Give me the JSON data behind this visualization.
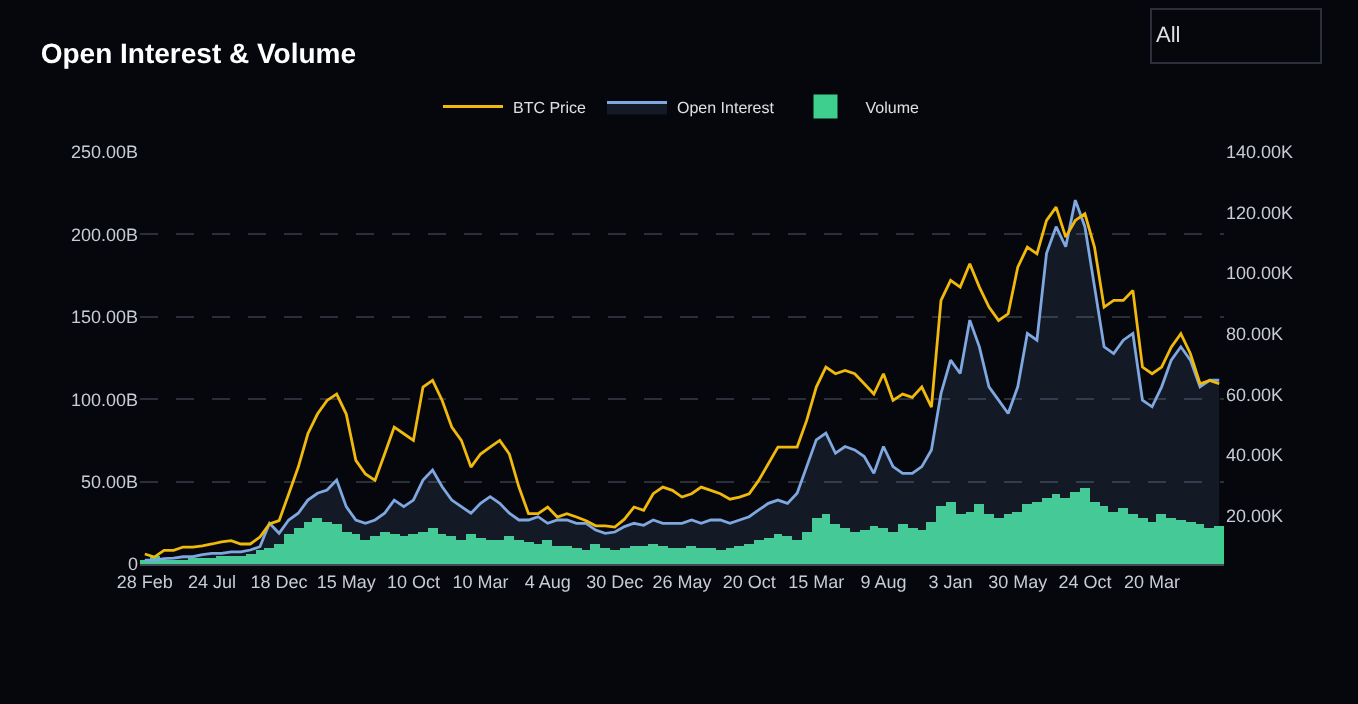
{
  "chart_data": {
    "type": "line",
    "title": "Open Interest & Volume",
    "annotations": [
      "All"
    ],
    "categories": [
      "28 Feb",
      null,
      null,
      null,
      null,
      null,
      null,
      "24 Jul",
      null,
      null,
      null,
      null,
      null,
      null,
      "18 Dec",
      null,
      null,
      null,
      null,
      null,
      null,
      "15 May",
      null,
      null,
      null,
      null,
      null,
      null,
      "10 Oct",
      null,
      null,
      null,
      null,
      null,
      null,
      "10 Mar",
      null,
      null,
      null,
      null,
      null,
      null,
      "4 Aug",
      null,
      null,
      null,
      null,
      null,
      null,
      "30 Dec",
      null,
      null,
      null,
      null,
      null,
      null,
      "26 May",
      null,
      null,
      null,
      null,
      null,
      null,
      "20 Oct",
      null,
      null,
      null,
      null,
      null,
      null,
      "15 Mar",
      null,
      null,
      null,
      null,
      null,
      null,
      "9 Aug",
      null,
      null,
      null,
      null,
      null,
      null,
      "3 Jan",
      null,
      null,
      null,
      null,
      null,
      null,
      "30 May",
      null,
      null,
      null,
      null,
      null,
      null,
      "24 Oct",
      null,
      null,
      null,
      null,
      null,
      null,
      "20 Mar",
      null,
      null,
      null,
      null,
      null,
      null,
      null
    ],
    "series": [
      {
        "name": "BTC Price",
        "axis": "y2",
        "color": "#f0b90b",
        "values": [
          7.3,
          6.3,
          8.5,
          8.5,
          9.6,
          9.6,
          10.0,
          10.6,
          11.3,
          11.7,
          10.6,
          10.6,
          12.9,
          17.2,
          18.3,
          27.1,
          36,
          47,
          53.5,
          58,
          60.1,
          53.5,
          38.2,
          33.7,
          31.6,
          40.3,
          49.2,
          47,
          44.8,
          62.4,
          64.6,
          58,
          49.2,
          44.8,
          36,
          40.3,
          42.6,
          44.8,
          40.3,
          29.4,
          20.6,
          20.6,
          22.8,
          19.5,
          20.6,
          19.5,
          18.3,
          16.6,
          16.6,
          16.2,
          18.8,
          22.8,
          21.7,
          27.2,
          29.4,
          28.3,
          26.1,
          27.2,
          29.4,
          28.3,
          27.2,
          25.4,
          26.1,
          27.2,
          31.6,
          37.1,
          42.6,
          42.6,
          42.6,
          51.4,
          62.4,
          69.0,
          66.8,
          67.9,
          66.8,
          63.5,
          60.1,
          66.8,
          58.0,
          60.1,
          59.0,
          62.4,
          55.8,
          91.0,
          97.6,
          95.4,
          103.1,
          95.4,
          88.8,
          84.4,
          86.6,
          102.0,
          108.6,
          106.4,
          117.4,
          121.8,
          111.9,
          117.4,
          119.6,
          108.6,
          88.8,
          91.0,
          91.0,
          94.3,
          69.0,
          66.8,
          69.0,
          75.6,
          80.0,
          73.4,
          63.5,
          64.6,
          63.5
        ]
      },
      {
        "name": "Open Interest",
        "type": "area",
        "color": "#7fa7e0",
        "values": [
          2.4,
          2.4,
          3.2,
          3.6,
          4.4,
          4.4,
          5.7,
          6.5,
          6.5,
          7.3,
          7.3,
          8.5,
          10.5,
          24.7,
          18.6,
          26.7,
          30.8,
          38.8,
          42.9,
          44.9,
          50.9,
          34.8,
          26.7,
          24.7,
          26.7,
          30.8,
          38.8,
          34.8,
          38.8,
          50.9,
          57.0,
          46.9,
          38.8,
          34.8,
          30.8,
          36.8,
          40.9,
          36.8,
          30.8,
          26.7,
          26.7,
          28.7,
          24.7,
          26.7,
          26.7,
          24.7,
          24.7,
          20.6,
          18.6,
          19.4,
          22.7,
          24.7,
          23.5,
          26.7,
          24.7,
          24.7,
          24.7,
          26.7,
          24.7,
          26.7,
          26.7,
          24.7,
          26.7,
          28.7,
          32.8,
          36.8,
          38.8,
          36.8,
          42.9,
          59.1,
          75.3,
          79.4,
          67.2,
          71.3,
          69.2,
          65.2,
          55.0,
          71.3,
          59.1,
          55.0,
          55.0,
          59.1,
          69.2,
          103.5,
          123.7,
          115.6,
          148.0,
          131.8,
          107.5,
          99.4,
          91.3,
          107.5,
          139.9,
          135.8,
          188.5,
          204.7,
          192.5,
          220.8,
          204.7,
          168.3,
          131.8,
          127.7,
          135.8,
          139.9,
          99.4,
          95.4,
          107.5,
          123.7,
          131.8,
          123.7,
          107.5,
          111.5,
          111.5
        ]
      },
      {
        "name": "Volume",
        "type": "bar",
        "color": "#3ecf8e",
        "values": [
          2,
          5,
          3,
          3,
          3,
          4,
          4,
          4,
          5,
          5,
          5,
          6,
          8,
          10,
          12,
          18,
          22,
          25,
          28,
          26,
          24,
          20,
          18,
          15,
          17,
          19,
          18,
          17,
          18,
          20,
          22,
          18,
          17,
          15,
          18,
          16,
          15,
          15,
          17,
          14,
          13,
          12,
          14,
          11,
          11,
          10,
          9,
          12,
          10,
          9,
          10,
          11,
          11,
          12,
          11,
          10,
          10,
          11,
          10,
          10,
          9,
          10,
          11,
          12,
          14,
          16,
          18,
          17,
          15,
          20,
          28,
          30,
          24,
          22,
          20,
          21,
          23,
          22,
          20,
          24,
          22,
          21,
          25,
          35,
          38,
          30,
          32,
          36,
          30,
          28,
          30,
          32,
          36,
          38,
          40,
          42,
          40,
          44,
          46,
          38,
          35,
          32,
          34,
          30,
          28,
          26,
          30,
          28,
          27,
          25,
          24,
          22,
          23
        ]
      }
    ],
    "ylim": [
      0,
      250
    ],
    "yticks": [
      0,
      {
        "value": 50,
        "label": "50.00B"
      },
      {
        "value": 100,
        "label": "100.00B"
      },
      {
        "value": 150,
        "label": "150.00B"
      },
      {
        "value": 200,
        "label": "200.00B"
      },
      {
        "value": 250,
        "label": "250.00B"
      }
    ],
    "y2lim": [
      4,
      140
    ],
    "y2ticks": [
      {
        "value": 20,
        "label": "20.00K"
      },
      {
        "value": 40,
        "label": "40.00K"
      },
      {
        "value": 60,
        "label": "60.00K"
      },
      {
        "value": 80,
        "label": "80.00K"
      },
      {
        "value": 100,
        "label": "100.00K"
      },
      {
        "value": 120,
        "label": "120.00K"
      },
      {
        "value": 140,
        "label": "140.00K"
      }
    ],
    "grid": "y",
    "legend": "top",
    "marker": "none",
    "line_style": "solid"
  }
}
